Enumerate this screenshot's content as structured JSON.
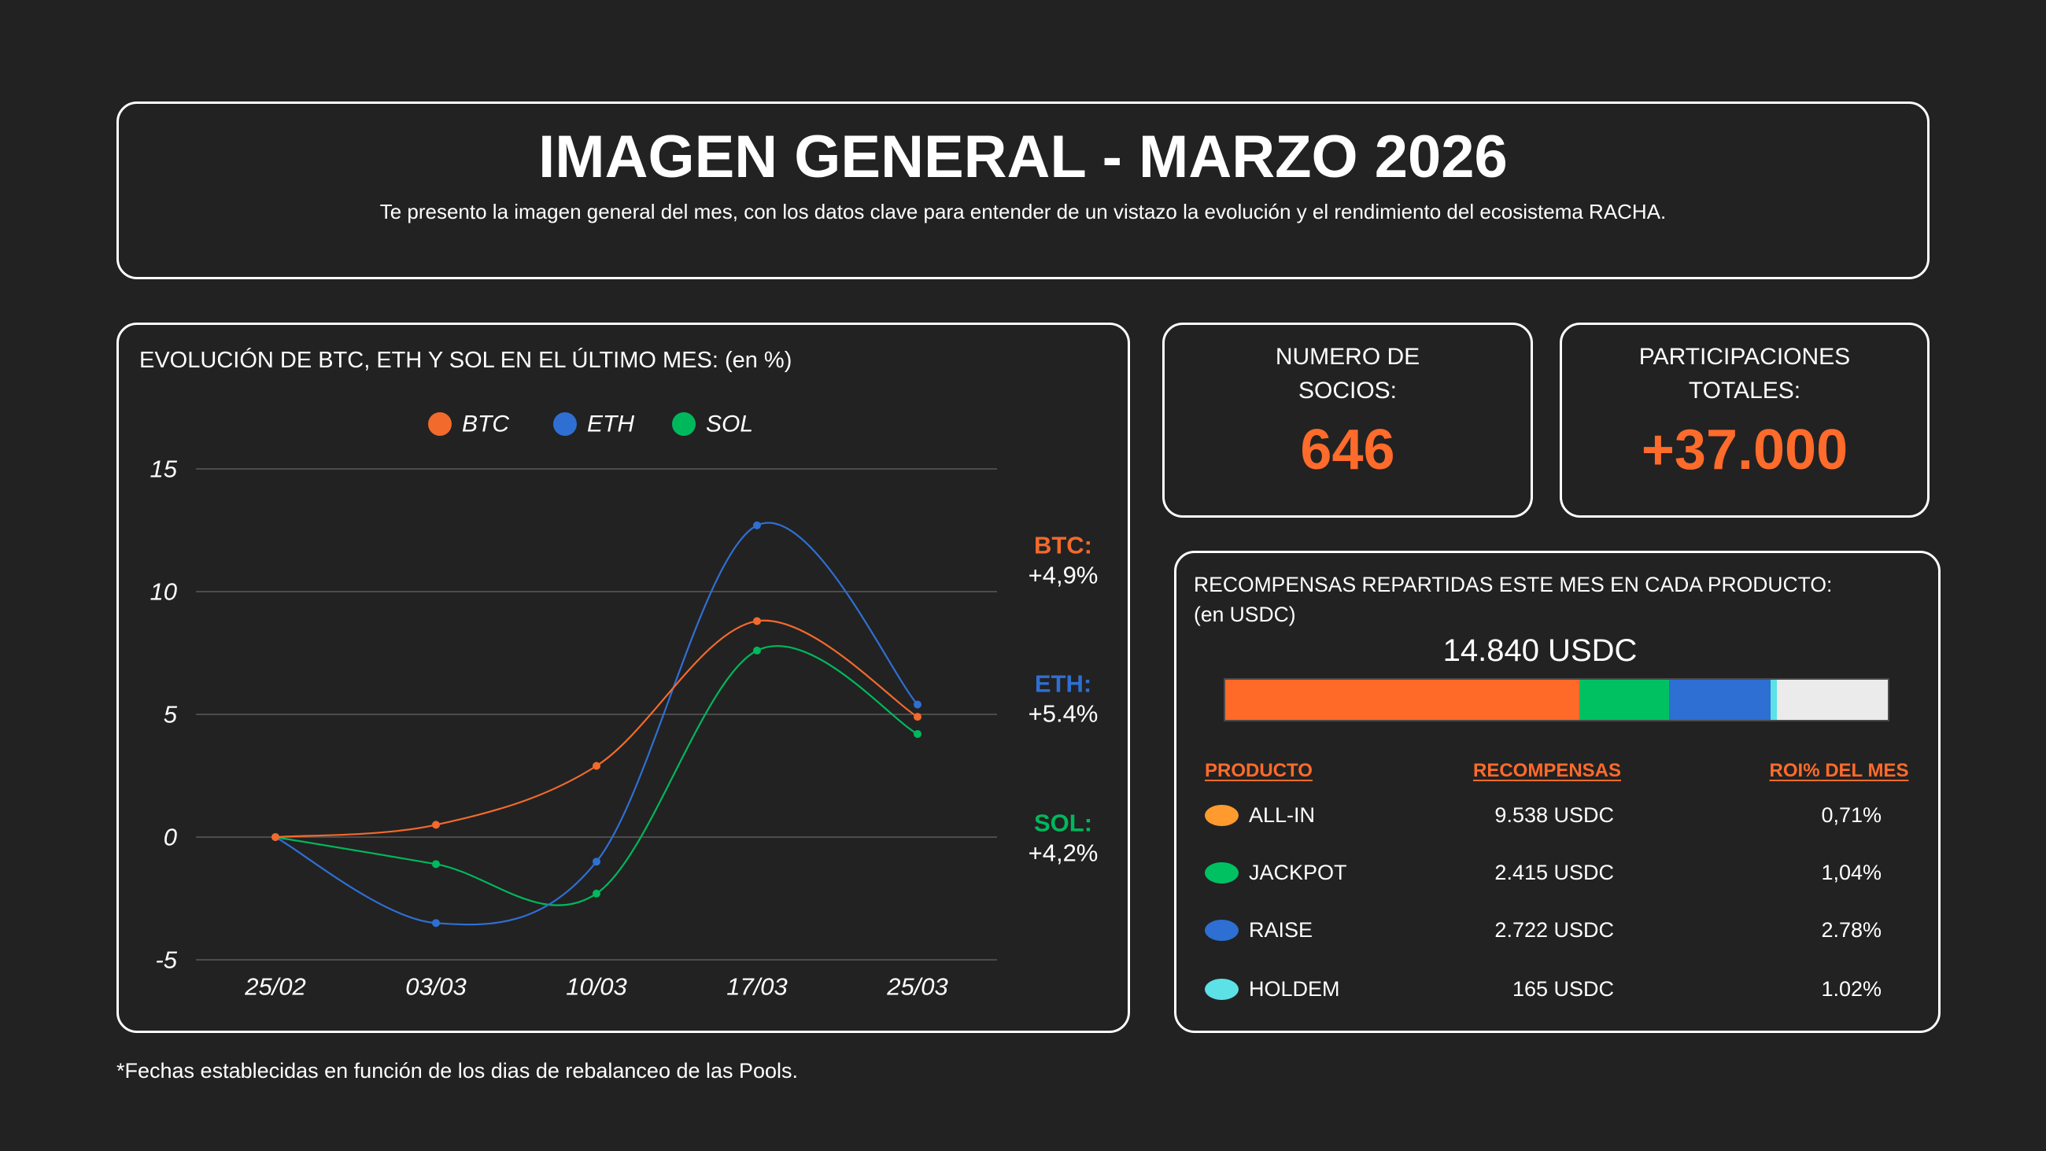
{
  "page": {
    "title": "IMAGEN GENERAL - MARZO 2026",
    "subtitle": "Te presento la imagen general del mes, con los datos clave para entender de un vistazo la evolución y el rendimiento del ecosistema RACHA.",
    "footnote": "*Fechas establecidas en función de los dias de rebalanceo de las Pools."
  },
  "colors": {
    "background": "#222222",
    "accent": "#ff6b2b",
    "border": "#ffffff"
  },
  "stats": {
    "members": {
      "label_line1": "NUMERO DE",
      "label_line2": "SOCIOS:",
      "value": "646"
    },
    "participations": {
      "label_line1": "PARTICIPACIONES",
      "label_line2": "TOTALES:",
      "value": "+37.000"
    }
  },
  "rewards": {
    "heading_line1": "RECOMPENSAS REPARTIDAS ESTE MES EN CADA PRODUCTO:",
    "heading_line2": "(en USDC)",
    "total": "14.840 USDC",
    "bar_segments": [
      {
        "color": "#ff6a28",
        "fraction": 0.535
      },
      {
        "color": "#00c162",
        "fraction": 0.135
      },
      {
        "color": "#2d6fd2",
        "fraction": 0.153
      },
      {
        "color": "#5ce1e6",
        "fraction": 0.01
      },
      {
        "color": "#ebebeb",
        "fraction": 0.167
      }
    ],
    "columns": {
      "product": "PRODUCTO",
      "rewards": "RECOMPENSAS",
      "roi": "ROI% DEL MES"
    },
    "rows": [
      {
        "product": "ALL-IN",
        "color": "#ff9a2e",
        "rewards": "9.538 USDC",
        "roi": "0,71%"
      },
      {
        "product": "JACKPOT",
        "color": "#00c162",
        "rewards": "2.415 USDC",
        "roi": "1,04%"
      },
      {
        "product": "RAISE",
        "color": "#2d6fd2",
        "rewards": "2.722 USDC",
        "roi": "2.78%"
      },
      {
        "product": "HOLDEM",
        "color": "#5ce1e6",
        "rewards": "165 USDC",
        "roi": "1.02%"
      }
    ]
  },
  "chart_data": {
    "type": "line",
    "title": "EVOLUCIÓN DE BTC, ETH Y SOL EN EL ÚLTIMO MES: (en %)",
    "categories": [
      "25/02",
      "03/03",
      "10/03",
      "17/03",
      "25/03"
    ],
    "yticks": [
      15,
      10,
      5,
      0,
      -5
    ],
    "ylim": [
      -5,
      15
    ],
    "grid": true,
    "legend": "top-center",
    "series": [
      {
        "name": "BTC",
        "color": "#f26a2c",
        "values": [
          0,
          0.5,
          2.9,
          8.8,
          4.9
        ]
      },
      {
        "name": "ETH",
        "color": "#2f6fd3",
        "values": [
          0,
          -3.5,
          -1.0,
          12.7,
          5.4
        ]
      },
      {
        "name": "SOL",
        "color": "#00b85c",
        "values": [
          0,
          -1.1,
          -2.3,
          7.6,
          4.2
        ]
      }
    ],
    "annotations": [
      {
        "label": "BTC:",
        "value": "+4,9%"
      },
      {
        "label": "ETH:",
        "value": "+5.4%"
      },
      {
        "label": "SOL:",
        "value": "+4,2%"
      }
    ]
  }
}
